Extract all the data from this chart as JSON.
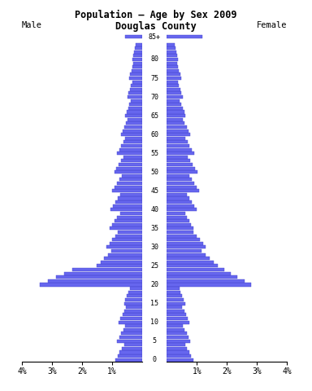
{
  "title_line1": "Population — Age by Sex 2009",
  "title_line2": "Douglas County",
  "bar_color": "#6666ee",
  "bar_edge_color": "#4444cc",
  "xlim": 4.0,
  "bg_color": "#ffffff",
  "male_label": "Male",
  "female_label": "Female",
  "age_group_labels": [
    "85+",
    "80",
    "75",
    "70",
    "65",
    "60",
    "55",
    "50",
    "45",
    "40",
    "35",
    "30",
    "25",
    "20",
    "15",
    "10",
    "5",
    "0"
  ],
  "male_5yr": [
    0.55,
    0.32,
    0.42,
    0.48,
    0.55,
    0.7,
    0.82,
    0.92,
    1.0,
    1.05,
    1.08,
    1.18,
    1.5,
    3.4,
    0.6,
    0.78,
    0.82,
    0.88
  ],
  "female_5yr": [
    1.18,
    0.38,
    0.48,
    0.52,
    0.62,
    0.78,
    0.9,
    1.02,
    1.08,
    0.98,
    0.88,
    1.3,
    1.7,
    2.8,
    0.6,
    0.75,
    0.78,
    0.88
  ]
}
